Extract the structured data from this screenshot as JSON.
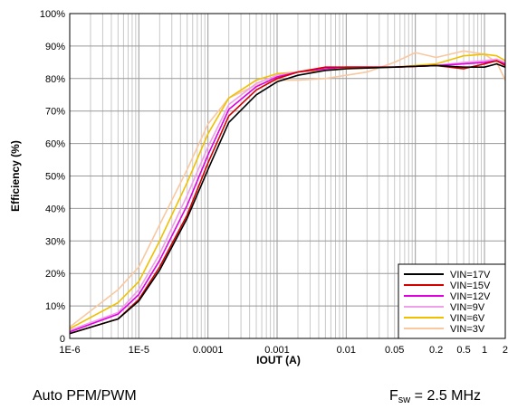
{
  "caption": {
    "left": "Auto PFM/PWM",
    "right_prefix": "F",
    "right_sub": "sw",
    "right_suffix": " = 2.5 MHz"
  },
  "chart_data": {
    "type": "line",
    "title": "",
    "xlabel": "IOUT (A)",
    "ylabel": "Efficiency (%)",
    "x_scale": "log",
    "xlim": [
      1e-06,
      2
    ],
    "ylim": [
      0,
      100
    ],
    "grid": true,
    "legend_position": "bottom-right",
    "x_ticks": [
      {
        "value": 1e-06,
        "label": "1E-6"
      },
      {
        "value": 1e-05,
        "label": "1E-5"
      },
      {
        "value": 0.0001,
        "label": "0.0001"
      },
      {
        "value": 0.001,
        "label": "0.001"
      },
      {
        "value": 0.01,
        "label": "0.01"
      },
      {
        "value": 0.05,
        "label": "0.05"
      },
      {
        "value": 0.2,
        "label": "0.2"
      },
      {
        "value": 0.5,
        "label": "0.5"
      },
      {
        "value": 1,
        "label": "1"
      },
      {
        "value": 2,
        "label": "2"
      }
    ],
    "y_ticks": [
      {
        "value": 0,
        "label": "0"
      },
      {
        "value": 10,
        "label": "10%"
      },
      {
        "value": 20,
        "label": "20%"
      },
      {
        "value": 30,
        "label": "30%"
      },
      {
        "value": 40,
        "label": "40%"
      },
      {
        "value": 50,
        "label": "50%"
      },
      {
        "value": 60,
        "label": "60%"
      },
      {
        "value": 70,
        "label": "70%"
      },
      {
        "value": 80,
        "label": "80%"
      },
      {
        "value": 90,
        "label": "90%"
      },
      {
        "value": 100,
        "label": "100%"
      }
    ],
    "series": [
      {
        "name": "VIN=17V",
        "color": "#000000",
        "x": [
          1e-06,
          5e-06,
          1e-05,
          2e-05,
          5e-05,
          0.0001,
          0.0002,
          0.0005,
          0.001,
          0.002,
          0.005,
          0.01,
          0.05,
          0.2,
          0.5,
          1,
          1.5,
          2
        ],
        "y": [
          1.5,
          6,
          11.5,
          21,
          37,
          52,
          66.5,
          75,
          79,
          81,
          82.5,
          83,
          83.5,
          84,
          83.5,
          83.5,
          84.5,
          83.5
        ]
      },
      {
        "name": "VIN=15V",
        "color": "#d40000",
        "x": [
          1e-06,
          5e-06,
          1e-05,
          2e-05,
          5e-05,
          0.0001,
          0.0002,
          0.0005,
          0.001,
          0.002,
          0.005,
          0.01,
          0.05,
          0.2,
          0.5,
          1,
          1.5,
          2
        ],
        "y": [
          1.5,
          6,
          12,
          22,
          38,
          54,
          68.5,
          76.5,
          80,
          82,
          83.5,
          83.5,
          83.5,
          84,
          83,
          84.5,
          85.5,
          84
        ]
      },
      {
        "name": "VIN=12V",
        "color": "#e000e0",
        "x": [
          1e-06,
          5e-06,
          1e-05,
          2e-05,
          5e-05,
          0.0001,
          0.0002,
          0.0005,
          0.001,
          0.002,
          0.005,
          0.01,
          0.05,
          0.2,
          0.5,
          1,
          1.5,
          2
        ],
        "y": [
          2,
          7.5,
          13.5,
          24,
          41,
          56.5,
          70.5,
          77.5,
          80.5,
          82,
          83,
          83.5,
          83.5,
          84,
          84.5,
          85,
          85.5,
          84.5
        ]
      },
      {
        "name": "VIN=9V",
        "color": "#f0a0e8",
        "x": [
          1e-06,
          5e-06,
          1e-05,
          2e-05,
          5e-05,
          0.0001,
          0.0002,
          0.0005,
          0.001,
          0.002,
          0.005,
          0.01,
          0.05,
          0.2,
          0.5,
          1,
          1.5,
          2
        ],
        "y": [
          2.5,
          8,
          15,
          26,
          44,
          59,
          72,
          78.5,
          81,
          82,
          83,
          83.5,
          83.5,
          84,
          85,
          85.5,
          86,
          85
        ]
      },
      {
        "name": "VIN=6V",
        "color": "#f0c000",
        "x": [
          1e-06,
          5e-06,
          1e-05,
          2e-05,
          5e-05,
          0.0001,
          0.0002,
          0.0005,
          0.001,
          0.002,
          0.005,
          0.01,
          0.05,
          0.2,
          0.5,
          1,
          1.5,
          2
        ],
        "y": [
          3,
          11,
          17.5,
          30,
          48,
          63,
          74,
          79.5,
          81.5,
          82,
          82.5,
          83,
          83.5,
          84.5,
          87,
          87.5,
          87,
          85.5
        ]
      },
      {
        "name": "VIN=3V",
        "color": "#f8c8a0",
        "x": [
          1e-06,
          5e-06,
          1e-05,
          2e-05,
          5e-05,
          0.0001,
          0.0002,
          0.0005,
          0.001,
          0.002,
          0.005,
          0.01,
          0.02,
          0.05,
          0.1,
          0.2,
          0.5,
          1,
          1.5,
          2
        ],
        "y": [
          3.5,
          15,
          22,
          35,
          52,
          66,
          74,
          78,
          79.5,
          79.5,
          80,
          81,
          82,
          85,
          88,
          86.5,
          88.5,
          87.5,
          85,
          79.5
        ]
      }
    ]
  }
}
